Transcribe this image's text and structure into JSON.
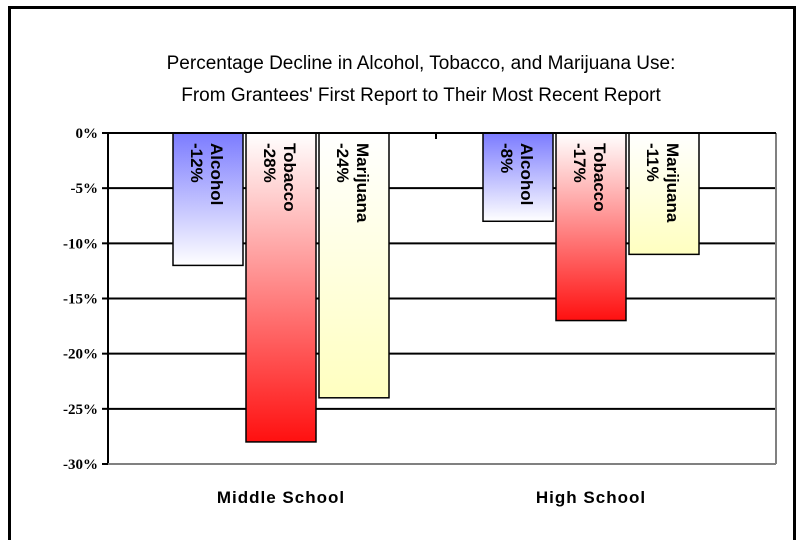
{
  "chart_data": {
    "type": "bar",
    "title": "Percentage Decline in Alcohol, Tobacco, and Marijuana Use:",
    "subtitle": "From Grantees' First Report to Their Most Recent Report",
    "categories": [
      "Middle School",
      "High School"
    ],
    "series": [
      {
        "name": "Alcohol",
        "values": [
          -12,
          -8
        ],
        "labels": [
          "-12%",
          "-8%"
        ],
        "color_top": "#7b7bff",
        "color_bottom": "#ffffff"
      },
      {
        "name": "Tobacco",
        "values": [
          -28,
          -17
        ],
        "labels": [
          "-28%",
          "-17%"
        ],
        "color_top": "#ffffff",
        "color_bottom": "#ff1010"
      },
      {
        "name": "Marijuana",
        "values": [
          -24,
          -11
        ],
        "labels": [
          "-24%",
          "-11%"
        ],
        "color_top": "#ffffff",
        "color_bottom": "#ffffc0"
      }
    ],
    "ylim": [
      -30,
      0
    ],
    "yticks": [
      0,
      -5,
      -10,
      -15,
      -20,
      -25,
      -30
    ],
    "ytick_labels": [
      "0%",
      "-5%",
      "-10%",
      "-15%",
      "-20%",
      "-25%",
      "-30%"
    ],
    "xlabel": "",
    "ylabel": "",
    "grid": true,
    "legend": "none"
  }
}
